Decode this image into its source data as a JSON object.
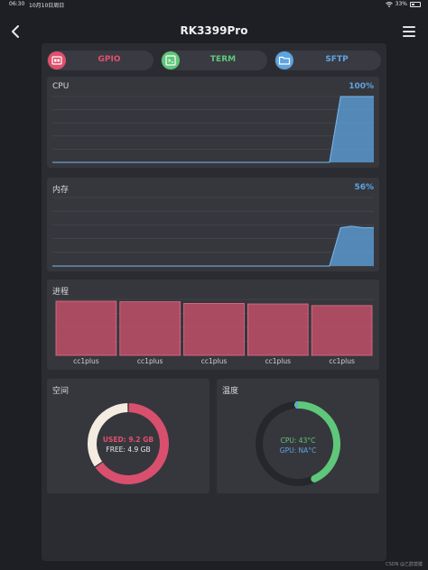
{
  "status_bar": {
    "time": "06:30",
    "date": "10月10日周日",
    "battery": "33%",
    "battery_level": 0.33
  },
  "navbar": {
    "title": "RK3399Pro"
  },
  "tabs": [
    {
      "label": "GPIO",
      "color": "#e0506e",
      "icon": "gpio-icon"
    },
    {
      "label": "TERM",
      "color": "#5fc77a",
      "icon": "terminal-icon"
    },
    {
      "label": "SFTP",
      "color": "#5ea4e0",
      "icon": "folder-icon"
    }
  ],
  "cpu": {
    "title": "CPU",
    "value": "100%",
    "chart_data": {
      "type": "area",
      "values": [
        0,
        0,
        0,
        0,
        0,
        0,
        0,
        0,
        0,
        0,
        0,
        0,
        0,
        0,
        0,
        0,
        0,
        0,
        0,
        0,
        0,
        0,
        0,
        0,
        0,
        0,
        100,
        100,
        100,
        100
      ],
      "ylim": [
        0,
        100
      ],
      "color": "#5ea4e0"
    }
  },
  "memory": {
    "title": "内存",
    "value": "56%",
    "chart_data": {
      "type": "area",
      "values": [
        0,
        0,
        0,
        0,
        0,
        0,
        0,
        0,
        0,
        0,
        0,
        0,
        0,
        0,
        0,
        0,
        0,
        0,
        0,
        0,
        0,
        0,
        0,
        0,
        0,
        0,
        56,
        58,
        56,
        56
      ],
      "ylim": [
        0,
        100
      ],
      "color": "#5ea4e0"
    }
  },
  "processes": {
    "title": "进程",
    "chart_data": {
      "type": "bar",
      "categories": [
        "cc1plus",
        "cc1plus",
        "cc1plus",
        "cc1plus",
        "cc1plus"
      ],
      "values": [
        100,
        99,
        96,
        95,
        92
      ],
      "ylim": [
        0,
        100
      ],
      "color": "#c8506a"
    }
  },
  "storage": {
    "title": "空间",
    "used_label": "USED: 9.2 GB",
    "free_label": "FREE: 4.9 GB",
    "chart_data": {
      "type": "pie",
      "labels": [
        "USED",
        "FREE"
      ],
      "values": [
        9.2,
        4.9
      ],
      "colors": [
        "#d8506e",
        "#f4ece0"
      ]
    }
  },
  "temperature": {
    "title": "温度",
    "cpu_label": "CPU: 43°C",
    "gpu_label": "GPU: NA°C",
    "cpu_color": "#5fc77a",
    "gpu_color": "#5ea4e0",
    "level": 0.43
  },
  "footer": "CSDN @乙醇莫键"
}
